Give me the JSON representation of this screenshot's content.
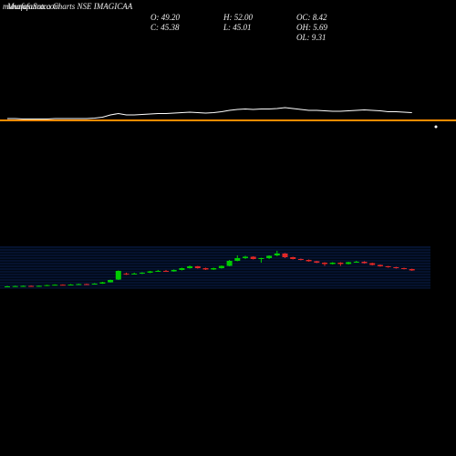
{
  "chart_data": {
    "type": "candlestick",
    "site": "munafasutra.com",
    "title": "MunafaSutra Charts NSE IMAGICAA",
    "stats": {
      "o": "O: 49.20",
      "h": "H: 52.00",
      "oc": "OC: 8.42",
      "c": "C: 45.38",
      "l": "L: 45.01",
      "oh": "OH: 5.69",
      "ol": "OL: 9.31"
    },
    "up_color": "#00cc00",
    "down_color": "#e02828",
    "ylim": [
      20,
      66
    ],
    "open": [
      21.5,
      22,
      22.3,
      22.5,
      22.2,
      22.6,
      23.4,
      23.8,
      23.5,
      24,
      24.5,
      24.2,
      25,
      26.5,
      29.5,
      36,
      35.5,
      36,
      37,
      38.5,
      39,
      38.5,
      40,
      42,
      44,
      42,
      40.5,
      42,
      44.5,
      50,
      53,
      54.5,
      52,
      53,
      56,
      58,
      54,
      52,
      51,
      49.5,
      48,
      46.5,
      48,
      46.5,
      48.5,
      49,
      47.5,
      45.5,
      44,
      43,
      42,
      41
    ],
    "high": [
      22.5,
      22.8,
      23,
      23,
      23,
      23.8,
      24.2,
      24.2,
      24.5,
      25,
      25,
      25.5,
      27,
      29.5,
      39.5,
      37,
      37,
      37.5,
      39,
      40,
      40,
      40.5,
      42.5,
      45,
      44.5,
      42.5,
      42.5,
      45,
      51,
      56,
      55.5,
      55,
      53.5,
      56,
      61,
      58.5,
      54.5,
      52.5,
      51.5,
      50,
      48.5,
      48.5,
      48.5,
      49,
      50,
      49.5,
      48,
      46,
      44.5,
      43.5,
      42.5,
      41.5
    ],
    "low": [
      21,
      21.7,
      22,
      21.8,
      21.9,
      22.3,
      23,
      23.1,
      23.2,
      23.7,
      23.8,
      24,
      24.8,
      26.2,
      29,
      34.5,
      35,
      35.5,
      36.5,
      38,
      38,
      38,
      39.5,
      41.5,
      41.5,
      40,
      40,
      41.5,
      44,
      49.5,
      52,
      51.5,
      48,
      52,
      55,
      53,
      51.5,
      50.5,
      49,
      47.5,
      44.5,
      46,
      44.5,
      46,
      48,
      47,
      45,
      43.5,
      42.5,
      41.5,
      40.5,
      39
    ],
    "close": [
      22,
      22.3,
      22.5,
      22.2,
      22.6,
      23.4,
      23.8,
      23.5,
      24,
      24.5,
      24.2,
      25,
      26.5,
      29,
      39,
      35.5,
      36,
      37,
      38.5,
      39,
      38.5,
      40,
      42,
      44,
      42,
      40.5,
      42,
      44.5,
      50,
      53,
      54.5,
      52,
      53,
      55.5,
      58,
      54,
      52,
      51,
      49.5,
      48,
      46.5,
      48,
      46.5,
      48.5,
      49,
      47.5,
      45.5,
      44,
      43,
      42,
      41,
      39.5
    ],
    "indicator": {
      "color": "#ffffff",
      "ylim": [
        0,
        35
      ],
      "values": [
        5,
        5,
        4.5,
        4.5,
        4.5,
        4.5,
        5,
        5,
        5,
        5,
        5,
        5.5,
        6.5,
        9,
        10.5,
        9,
        9,
        9.5,
        10,
        10.5,
        10.5,
        11,
        11.5,
        12,
        11.5,
        11,
        11.5,
        12.5,
        14,
        15,
        15.5,
        15,
        15.5,
        15.5,
        16,
        17,
        16,
        15,
        14,
        14,
        13.5,
        13,
        13,
        13.5,
        14,
        14.5,
        14,
        13.5,
        12.5,
        12.5,
        12,
        11.5
      ],
      "reference": 3,
      "reference_color": "#ff8c00"
    }
  }
}
